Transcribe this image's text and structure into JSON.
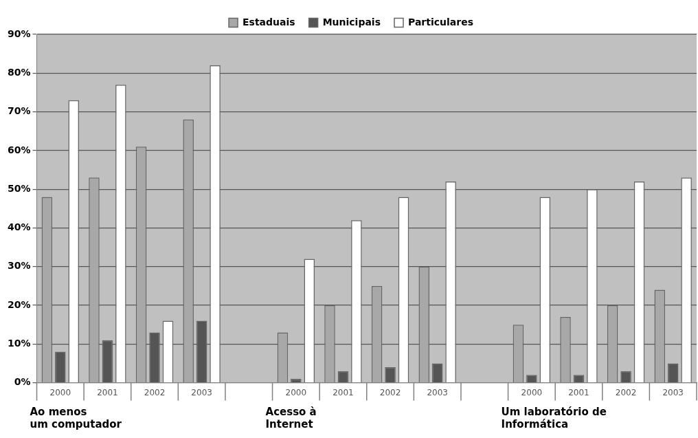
{
  "chart_data": {
    "type": "bar",
    "categories": [
      "2000",
      "2001",
      "2002",
      "2003",
      null,
      "2000",
      "2001",
      "2002",
      "2003",
      null,
      "2000",
      "2001",
      "2002",
      "2003"
    ],
    "series": [
      {
        "name": "Estaduais",
        "color": "#a8a8a8",
        "values": [
          48,
          53,
          61,
          68,
          null,
          13,
          20,
          25,
          30,
          null,
          15,
          17,
          20,
          24
        ]
      },
      {
        "name": "Municipais",
        "color": "#555555",
        "values": [
          8,
          11,
          13,
          16,
          null,
          1,
          3,
          4,
          5,
          null,
          2,
          2,
          3,
          5
        ]
      },
      {
        "name": "Particulares",
        "color": "#ffffff",
        "values": [
          73,
          77,
          16,
          82,
          null,
          32,
          42,
          48,
          52,
          null,
          48,
          50,
          52,
          53
        ]
      }
    ],
    "ylim": [
      0,
      90
    ],
    "yticks": [
      {
        "value": 0,
        "label": "0%"
      },
      {
        "value": 10,
        "label": "10%"
      },
      {
        "value": 20,
        "label": "20%"
      },
      {
        "value": 30,
        "label": "30%"
      },
      {
        "value": 40,
        "label": "40%"
      },
      {
        "value": 50,
        "label": "50%"
      },
      {
        "value": 60,
        "label": "60%"
      },
      {
        "value": 70,
        "label": "70%"
      },
      {
        "value": 80,
        "label": "80%"
      },
      {
        "value": 90,
        "label": "90%"
      }
    ],
    "grid": "y",
    "legend": "top",
    "annotations": [
      "Ao menos\num computador",
      "Acesso à\nInternet",
      "Um laboratório de\nInformática"
    ]
  }
}
